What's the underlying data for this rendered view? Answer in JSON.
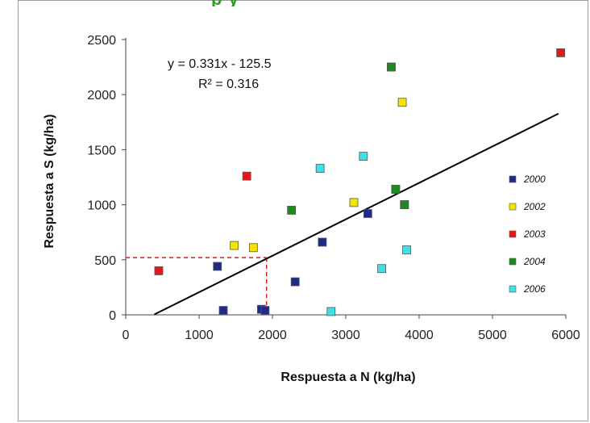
{
  "chart_data": {
    "type": "scatter",
    "title_partial": "p                y",
    "xlabel": "Respuesta a N (kg/ha)",
    "ylabel": "Respuesta a S (kg/ha)",
    "xlim": [
      0,
      6000
    ],
    "ylim": [
      0,
      2500
    ],
    "xticks": [
      "0",
      "1000",
      "2000",
      "3000",
      "4000",
      "5000",
      "6000"
    ],
    "yticks": [
      "0",
      "500",
      "1000",
      "1500",
      "2000",
      "2500"
    ],
    "grid": false,
    "legend_position": "right",
    "trendline": {
      "equation": "y = 0.331x - 125.5",
      "r2": "R² = 0.316",
      "slope": 0.331,
      "intercept": -125.5,
      "x_range": [
        390,
        5900
      ]
    },
    "reference_point": {
      "x": 1920,
      "y": 520
    },
    "series": [
      {
        "name": "2000",
        "color": "#1f2a8a",
        "points": [
          [
            1250,
            440
          ],
          [
            1330,
            40
          ],
          [
            1850,
            50
          ],
          [
            1900,
            40
          ],
          [
            2310,
            300
          ],
          [
            2680,
            660
          ],
          [
            3300,
            920
          ],
          [
            3620,
            2250
          ],
          [
            3680,
            1140
          ],
          [
            3800,
            1000
          ]
        ]
      },
      {
        "name": "2002",
        "color": "#f2e600",
        "points": [
          [
            1480,
            630
          ],
          [
            1740,
            610
          ],
          [
            3110,
            1020
          ],
          [
            3770,
            1930
          ]
        ]
      },
      {
        "name": "2003",
        "color": "#e8171a",
        "points": [
          [
            450,
            400
          ],
          [
            1650,
            1260
          ],
          [
            5930,
            2380
          ]
        ]
      },
      {
        "name": "2004",
        "color": "#1b8c1b",
        "points": [
          [
            2260,
            950
          ],
          [
            3620,
            2250
          ],
          [
            3680,
            1140
          ],
          [
            3800,
            1000
          ]
        ]
      },
      {
        "name": "2006",
        "color": "#40e0e8",
        "points": [
          [
            2650,
            1330
          ],
          [
            2800,
            30
          ],
          [
            3240,
            1440
          ],
          [
            3490,
            420
          ],
          [
            3830,
            590
          ]
        ]
      }
    ]
  }
}
